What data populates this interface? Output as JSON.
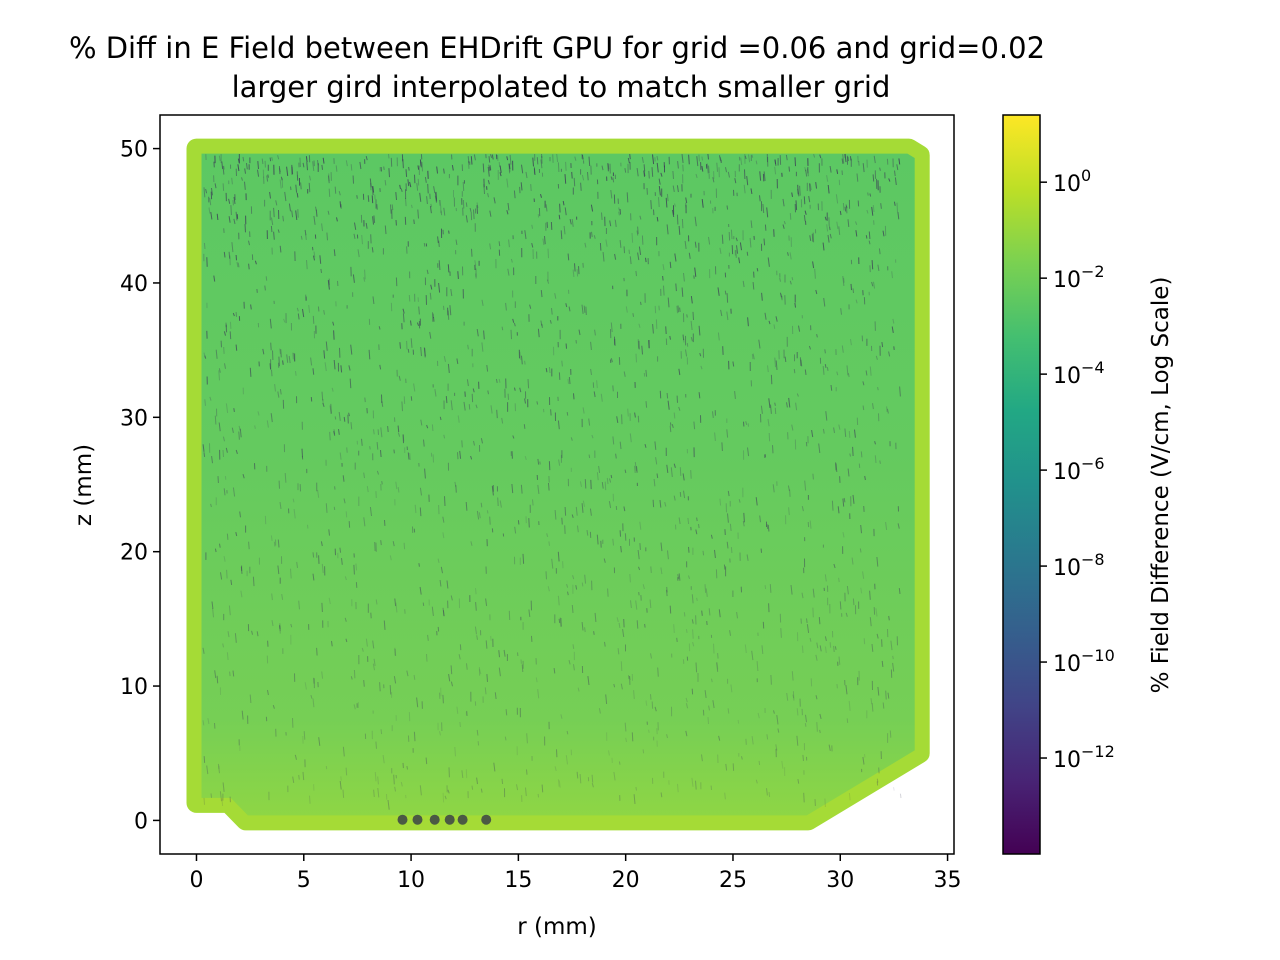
{
  "chart_data": {
    "type": "scatter",
    "title": "% Diff in E Field between EHDrift GPU for grid =0.06 and grid=0.02",
    "subtitle": "larger gird interpolated to match smaller grid",
    "xlabel": "r (mm)",
    "ylabel": "z (mm)",
    "xlim": [
      -1.7,
      35.3
    ],
    "ylim": [
      -2.5,
      52.5
    ],
    "xticks": [
      0,
      5,
      10,
      15,
      20,
      25,
      30,
      35
    ],
    "yticks": [
      0,
      10,
      20,
      30,
      40,
      50
    ],
    "grid": false,
    "colorbar": {
      "label": "% Field Difference (V/cm, Log Scale)",
      "scale": "log",
      "colormap": "viridis",
      "range_exponents": [
        -14,
        1.4
      ],
      "ticks": [
        {
          "base": "10",
          "exp": "0",
          "value": 1
        },
        {
          "base": "10",
          "exp": "−2",
          "value": 0.01
        },
        {
          "base": "10",
          "exp": "−4",
          "value": 0.0001
        },
        {
          "base": "10",
          "exp": "−6",
          "value": 1e-06
        },
        {
          "base": "10",
          "exp": "−8",
          "value": 1e-08
        },
        {
          "base": "10",
          "exp": "−10",
          "value": 1e-10
        },
        {
          "base": "10",
          "exp": "−12",
          "value": 1e-12
        }
      ]
    },
    "region_outline": [
      [
        0,
        1.3
      ],
      [
        1.5,
        1.3
      ],
      [
        2.3,
        0
      ],
      [
        28.5,
        0
      ],
      [
        33.7,
        5
      ],
      [
        33.7,
        49.5
      ],
      [
        33.2,
        50
      ],
      [
        0,
        50
      ]
    ],
    "dominant_value_percent": 0.03,
    "edge_value_percent": 1.0,
    "colors": {
      "body": "#6ccd5a",
      "upper": "#5cc863",
      "edge": "#a5db36",
      "speck": "#3b3a56",
      "axes": "#000000"
    }
  }
}
